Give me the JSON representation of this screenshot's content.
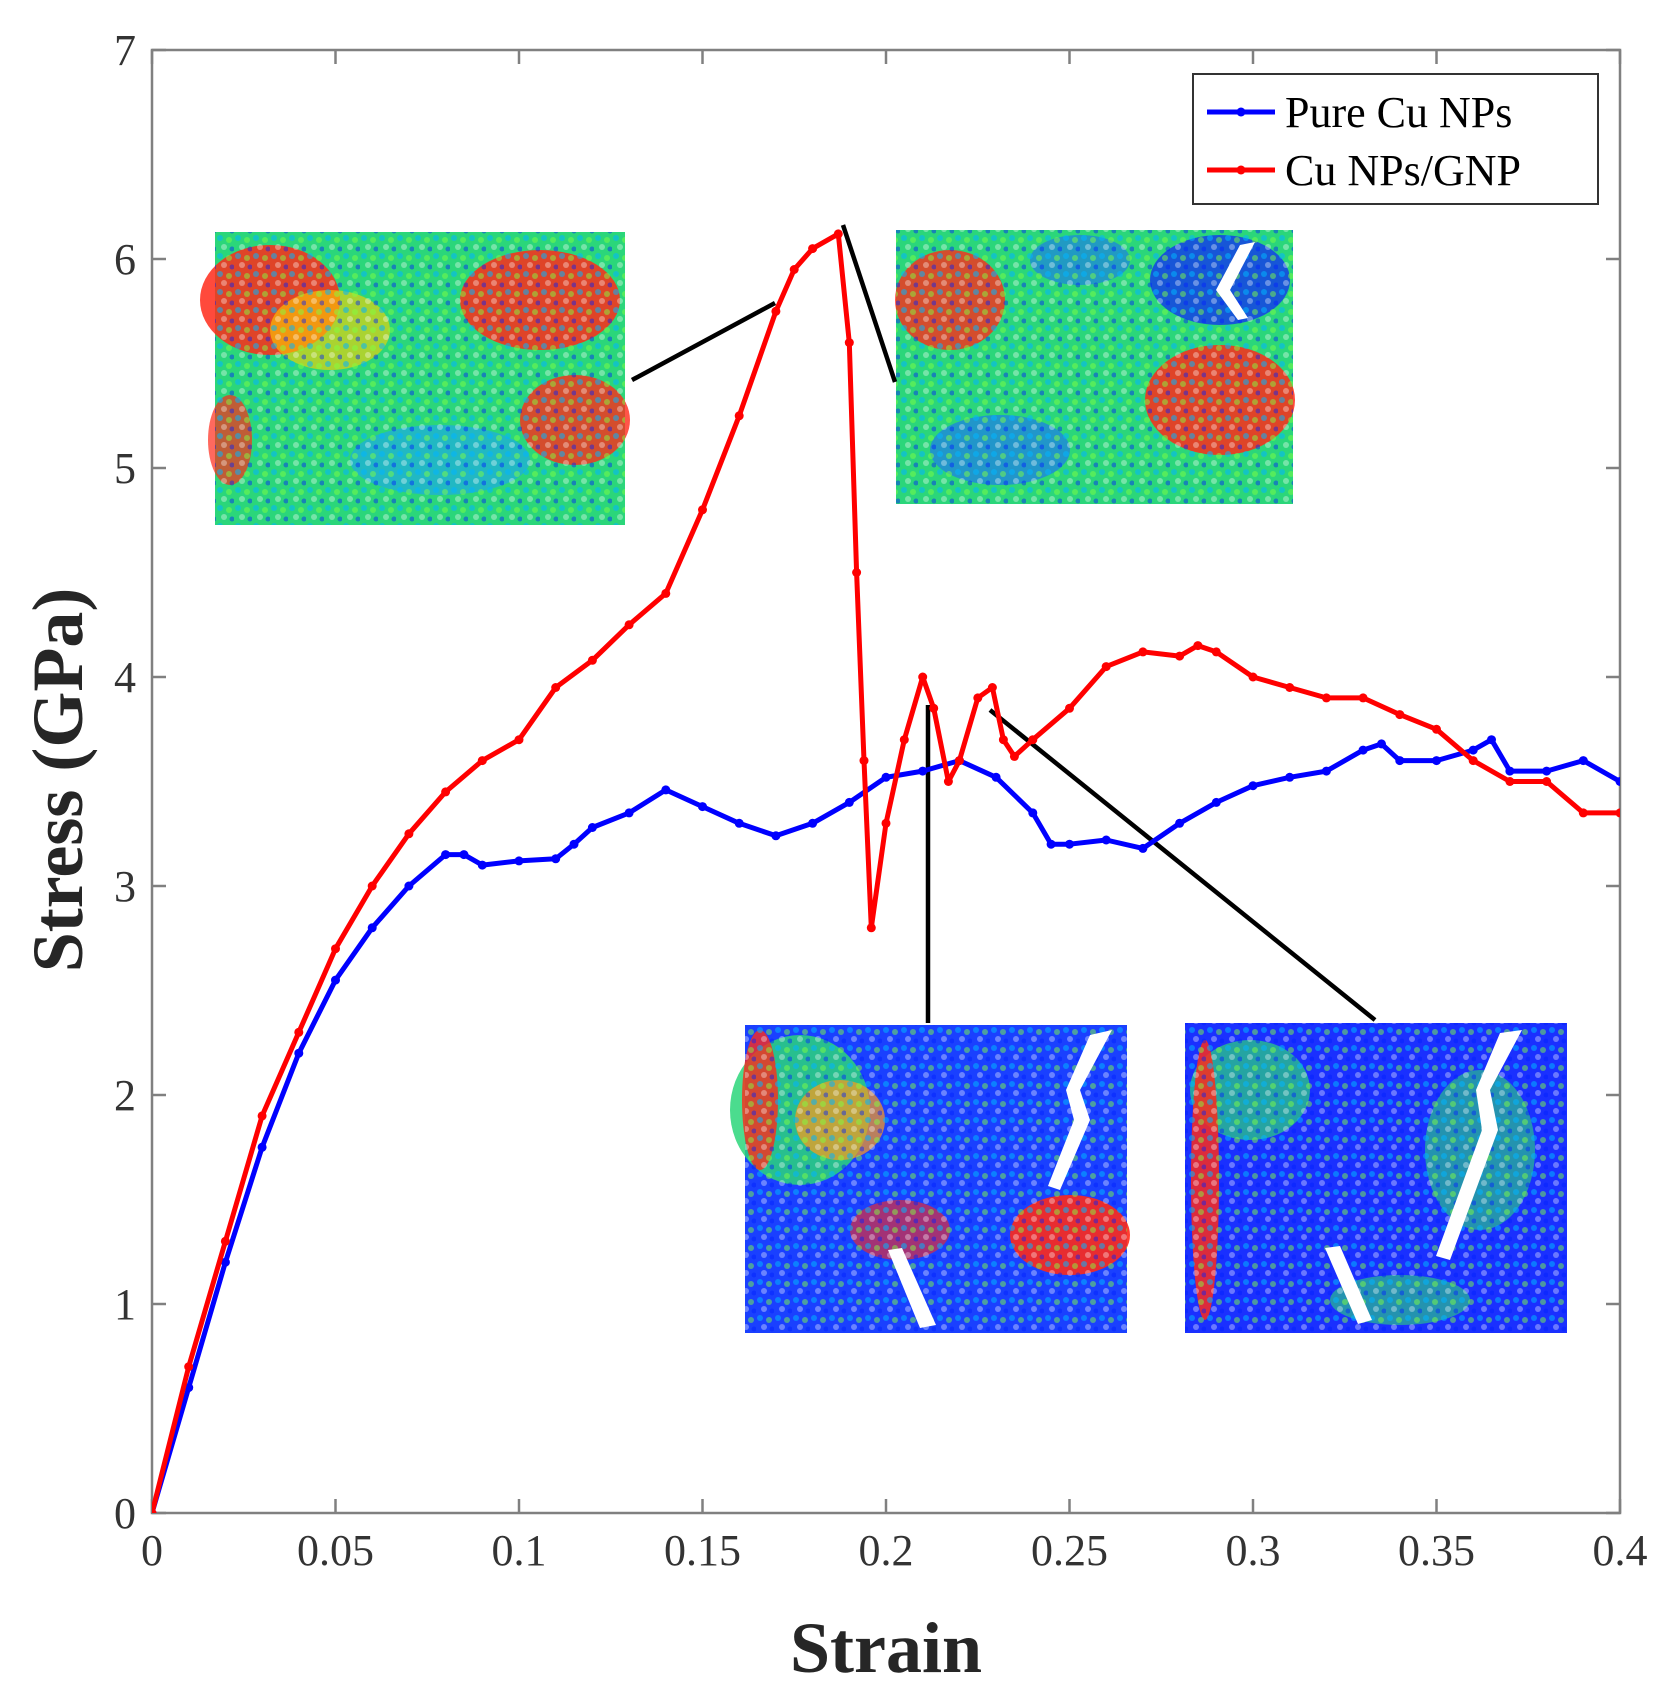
{
  "chart_data": {
    "type": "line",
    "title": "",
    "xlabel": "Strain",
    "ylabel": "Stress (GPa)",
    "xlim": [
      0,
      0.4
    ],
    "ylim": [
      0,
      7
    ],
    "xticks": [
      0,
      0.05,
      0.1,
      0.15,
      0.2,
      0.25,
      0.3,
      0.35,
      0.4
    ],
    "xtick_labels": [
      "0",
      "0.05",
      "0.1",
      "0.15",
      "0.2",
      "0.25",
      "0.3",
      "0.35",
      "0.4"
    ],
    "yticks": [
      0,
      1,
      2,
      3,
      4,
      5,
      6,
      7
    ],
    "ytick_labels": [
      "0",
      "1",
      "2",
      "3",
      "4",
      "5",
      "6",
      "7"
    ],
    "grid": false,
    "legend_position": "top-right",
    "series": [
      {
        "name": "Pure Cu NPs",
        "color": "#0000ff",
        "x": [
          0,
          0.01,
          0.02,
          0.03,
          0.04,
          0.05,
          0.06,
          0.07,
          0.08,
          0.085,
          0.09,
          0.1,
          0.11,
          0.115,
          0.12,
          0.13,
          0.14,
          0.15,
          0.16,
          0.17,
          0.18,
          0.19,
          0.2,
          0.21,
          0.22,
          0.23,
          0.24,
          0.245,
          0.25,
          0.26,
          0.27,
          0.28,
          0.29,
          0.3,
          0.31,
          0.32,
          0.33,
          0.335,
          0.34,
          0.35,
          0.36,
          0.365,
          0.37,
          0.38,
          0.39,
          0.4
        ],
        "y": [
          0,
          0.6,
          1.2,
          1.75,
          2.2,
          2.55,
          2.8,
          3.0,
          3.15,
          3.15,
          3.1,
          3.12,
          3.13,
          3.2,
          3.28,
          3.35,
          3.46,
          3.38,
          3.3,
          3.24,
          3.3,
          3.4,
          3.52,
          3.55,
          3.6,
          3.52,
          3.35,
          3.2,
          3.2,
          3.22,
          3.18,
          3.3,
          3.4,
          3.48,
          3.52,
          3.55,
          3.65,
          3.68,
          3.6,
          3.6,
          3.65,
          3.7,
          3.55,
          3.55,
          3.6,
          3.5
        ]
      },
      {
        "name": "Cu NPs/GNP",
        "color": "#ff0000",
        "x": [
          0,
          0.01,
          0.02,
          0.03,
          0.04,
          0.05,
          0.06,
          0.07,
          0.08,
          0.09,
          0.1,
          0.11,
          0.12,
          0.13,
          0.14,
          0.15,
          0.16,
          0.17,
          0.175,
          0.18,
          0.187,
          0.19,
          0.192,
          0.194,
          0.196,
          0.2,
          0.205,
          0.21,
          0.213,
          0.217,
          0.22,
          0.225,
          0.229,
          0.232,
          0.235,
          0.24,
          0.25,
          0.26,
          0.27,
          0.28,
          0.285,
          0.29,
          0.3,
          0.31,
          0.32,
          0.33,
          0.34,
          0.35,
          0.36,
          0.37,
          0.38,
          0.39,
          0.4
        ],
        "y": [
          0,
          0.7,
          1.3,
          1.9,
          2.3,
          2.7,
          3.0,
          3.25,
          3.45,
          3.6,
          3.7,
          3.95,
          4.08,
          4.25,
          4.4,
          4.8,
          5.25,
          5.75,
          5.95,
          6.05,
          6.12,
          5.6,
          4.5,
          3.6,
          2.8,
          3.3,
          3.7,
          4.0,
          3.85,
          3.5,
          3.6,
          3.9,
          3.95,
          3.7,
          3.62,
          3.7,
          3.85,
          4.05,
          4.12,
          4.1,
          4.15,
          4.12,
          4.0,
          3.95,
          3.9,
          3.9,
          3.82,
          3.75,
          3.6,
          3.5,
          3.5,
          3.35,
          3.35
        ]
      }
    ]
  }
}
